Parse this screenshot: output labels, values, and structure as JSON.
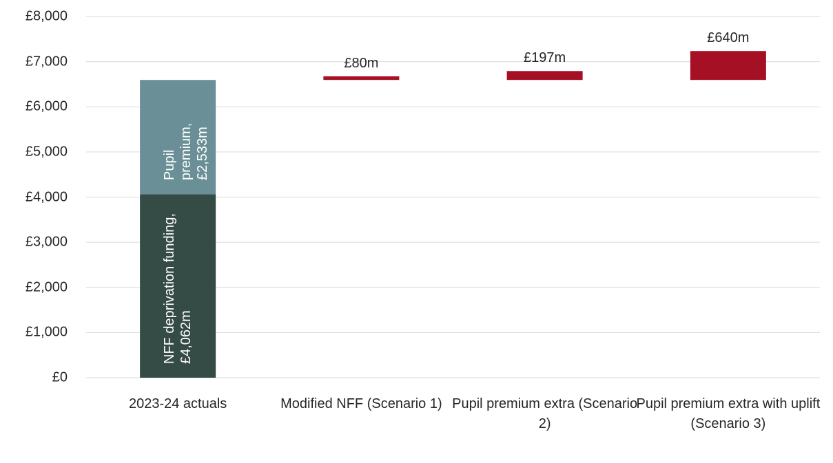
{
  "chart_data": {
    "type": "waterfall",
    "categories": [
      "2023-24 actuals",
      "Modified NFF (Scenario 1)",
      "Pupil premium extra (Scenario 2)",
      "Pupil premium extra with uplift (Scenario 3)"
    ],
    "series": [
      {
        "color": "#354b45",
        "values": [
          4062,
          null,
          null,
          null
        ],
        "value_labels": [
          "NFF deprivation funding, £4,062m",
          null,
          null,
          null
        ]
      },
      {
        "color": "#6a8f97",
        "values": [
          2533,
          null,
          null,
          null
        ],
        "value_labels": [
          "Pupil premium, £2,533m",
          null,
          null,
          null
        ]
      },
      {
        "color": "#a51025",
        "values": [
          null,
          80,
          197,
          640
        ],
        "value_labels": [
          null,
          "£80m",
          "£197m",
          "£640m"
        ]
      }
    ],
    "ylim": [
      0,
      8000
    ],
    "yticks": [
      {
        "value": 0,
        "label": "£0"
      },
      {
        "value": 1000,
        "label": "£1,000"
      },
      {
        "value": 2000,
        "label": "£2,000"
      },
      {
        "value": 3000,
        "label": "£3,000"
      },
      {
        "value": 4000,
        "label": "£4,000"
      },
      {
        "value": 5000,
        "label": "£5,000"
      },
      {
        "value": 6000,
        "label": "£6,000"
      },
      {
        "value": 7000,
        "label": "£7,000"
      },
      {
        "value": 8000,
        "label": "£8,000"
      }
    ],
    "grid": true
  }
}
